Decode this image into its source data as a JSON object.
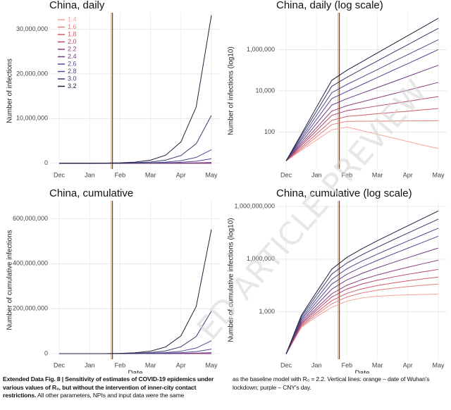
{
  "chart_data": [
    {
      "type": "line",
      "title": "China, daily",
      "y_label": "Number of infections",
      "log_y": false,
      "legend": "top-left",
      "categories": [
        "Dec",
        null,
        "Jan",
        null,
        "Feb",
        null,
        "Mar",
        null,
        "Apr",
        null,
        "May"
      ],
      "ylim": [
        -1300000,
        33700000
      ],
      "yticks": [
        0,
        {
          "value": 10000000,
          "label": "10,000,000"
        },
        {
          "value": 20000000,
          "label": "20,000,000"
        },
        {
          "value": 30000000,
          "label": "30,000,000"
        }
      ],
      "vlines": [
        {
          "at": 3.42,
          "color": "#f0a04b"
        },
        {
          "at": 3.5,
          "color": "#6a3d9a"
        }
      ],
      "series": [
        {
          "name": "1.4",
          "color": "#f2a49b",
          "values": [
            4,
            13,
            41,
            129,
            174,
            117,
            78,
            52,
            35,
            23,
            16
          ]
        },
        {
          "name": "1.6",
          "color": "#e57f7f",
          "values": [
            4,
            15,
            59,
            229,
            331,
            335,
            339,
            343,
            347,
            351,
            355
          ]
        },
        {
          "name": "1.8",
          "color": "#cf5a6a",
          "values": [
            4,
            18,
            81,
            372,
            575,
            661,
            776,
            891,
            1023,
            1202,
            1380
          ]
        },
        {
          "name": "2.0",
          "color": "#b3466f",
          "values": [
            4,
            22,
            117,
            646,
            1096,
            1413,
            1862,
            2399,
            3090,
            4074,
            5248
          ]
        },
        {
          "name": "2.2",
          "color": "#8f3f7a",
          "values": [
            4,
            26,
            162,
            1047,
            1905,
            2951,
            4571,
            7079,
            10715,
            16596,
            25704
          ]
        },
        {
          "name": "2.4",
          "color": "#6d3b82",
          "values": [
            4,
            32,
            257,
            2042,
            4169,
            7762,
            14454,
            26915,
            50119,
            93325,
            173780
          ]
        },
        {
          "name": "2.6",
          "color": "#5a4592",
          "values": [
            4,
            41,
            407,
            4169,
            9333,
            20417,
            44668,
            97724,
            208930,
            457088,
            1000000
          ]
        },
        {
          "name": "2.8",
          "color": "#4a4a8c",
          "values": [
            4,
            50,
            646,
            8128,
            20417,
            46774,
            107152,
            251189,
            575440,
            1318257,
            3019952
          ]
        },
        {
          "name": "3.0",
          "color": "#38386e",
          "values": [
            4,
            65,
            1023,
            16596,
            45709,
            114815,
            281838,
            707946,
            1737801,
            4365158,
            10715193
          ]
        },
        {
          "name": "3.2",
          "color": "#1e1e3c",
          "values": [
            4,
            79,
            1622,
            32359,
            100000,
            263027,
            691831,
            1819701,
            4786301,
            12589254,
            33113112
          ]
        }
      ]
    },
    {
      "type": "line",
      "title": "China, daily (log scale)",
      "y_label": "Number of infections (log10)",
      "log_y": true,
      "categories": [
        "Dec",
        null,
        "Jan",
        null,
        "Feb",
        null,
        "Mar",
        null,
        "Apr",
        null,
        "May"
      ],
      "ylim": [
        1.6,
        62000000
      ],
      "yticks": [
        100,
        {
          "value": 10000,
          "label": "10,000"
        },
        {
          "value": 1000000,
          "label": "1,000,000"
        }
      ],
      "vlines": [
        {
          "at": 3.42,
          "color": "#f0a04b"
        },
        {
          "at": 3.5,
          "color": "#6a3d9a"
        }
      ],
      "series": [
        {
          "color": "#f2a49b",
          "values": [
            4,
            13,
            41,
            129,
            174,
            117,
            78,
            52,
            35,
            23,
            16
          ]
        },
        {
          "color": "#e57f7f",
          "values": [
            4,
            15,
            59,
            229,
            331,
            335,
            339,
            343,
            347,
            351,
            355
          ]
        },
        {
          "color": "#cf5a6a",
          "values": [
            4,
            18,
            81,
            372,
            575,
            661,
            776,
            891,
            1023,
            1202,
            1380
          ]
        },
        {
          "color": "#b3466f",
          "values": [
            4,
            22,
            117,
            646,
            1096,
            1413,
            1862,
            2399,
            3090,
            4074,
            5248
          ]
        },
        {
          "color": "#8f3f7a",
          "values": [
            4,
            26,
            162,
            1047,
            1905,
            2951,
            4571,
            7079,
            10715,
            16596,
            25704
          ]
        },
        {
          "color": "#6d3b82",
          "values": [
            4,
            32,
            257,
            2042,
            4169,
            7762,
            14454,
            26915,
            50119,
            93325,
            173780
          ]
        },
        {
          "color": "#5a4592",
          "values": [
            4,
            41,
            407,
            4169,
            9333,
            20417,
            44668,
            97724,
            208930,
            457088,
            1000000
          ]
        },
        {
          "color": "#4a4a8c",
          "values": [
            4,
            50,
            646,
            8128,
            20417,
            46774,
            107152,
            251189,
            575440,
            1318257,
            3019952
          ]
        },
        {
          "color": "#38386e",
          "values": [
            4,
            65,
            1023,
            16596,
            45709,
            114815,
            281838,
            707946,
            1737801,
            4365158,
            10715193
          ]
        },
        {
          "color": "#1e1e3c",
          "values": [
            4,
            79,
            1622,
            32359,
            100000,
            263027,
            691831,
            1819701,
            4786301,
            12589254,
            33113112
          ]
        }
      ]
    },
    {
      "type": "line",
      "title": "China, cumulative",
      "y_label": "Number of cumulative infections",
      "x_label": "Date",
      "log_y": false,
      "categories": [
        "Dec",
        null,
        "Jan",
        null,
        "Feb",
        null,
        "Mar",
        null,
        "Apr",
        null,
        "May"
      ],
      "ylim": [
        -25000000,
        680000000
      ],
      "yticks": [
        0,
        {
          "value": 200000000,
          "label": "200,000,000"
        },
        {
          "value": 400000000,
          "label": "400,000,000"
        },
        {
          "value": 600000000,
          "label": "600,000,000"
        }
      ],
      "vlines": [
        {
          "at": 3.42,
          "color": "#f0a04b"
        },
        {
          "at": 3.5,
          "color": "#6a3d9a"
        }
      ],
      "series": [
        {
          "color": "#f2a49b",
          "values": [
            4,
            132,
            537,
            1812,
            4084,
            6266,
            7729,
            8704,
            9357,
            9792,
            10085
          ]
        },
        {
          "color": "#e57f7f",
          "values": [
            4,
            147,
            702,
            2862,
            7062,
            12057,
            17112,
            22227,
            27402,
            32637,
            37932
          ]
        },
        {
          "color": "#cf5a6a",
          "values": [
            4,
            169,
            912,
            4310,
            11413,
            20683,
            31461,
            43964,
            58319,
            75007,
            94372
          ]
        },
        {
          "color": "#b3466f",
          "values": [
            4,
            199,
            1242,
            6965,
            20030,
            38848,
            63411,
            95369,
            136537,
            190267,
            260182
          ]
        },
        {
          "color": "#8f3f7a",
          "values": [
            4,
            229,
            1639,
            10707,
            32847,
            69267,
            125682,
            213057,
            346512,
            551345,
            868595
          ]
        },
        {
          "color": "#6d3b82",
          "values": [
            4,
            274,
            2442,
            19685,
            66268,
            155751,
            322371,
            632639,
            1210394,
            2286224,
            4289512
          ]
        },
        {
          "color": "#5a4592",
          "values": [
            4,
            342,
            3702,
            38022,
            139287,
            362412,
            850550,
            1918490,
            4218395,
            9213530,
            20141690
          ]
        },
        {
          "color": "#4a4a8c",
          "values": [
            4,
            409,
            5629,
            71434,
            285522,
            789455,
            1943900,
            4631458,
            10831176,
            25033904,
            57570472
          ]
        },
        {
          "color": "#38386e",
          "values": [
            4,
            522,
            8682,
            140825,
            608113,
            1812043,
            4786941,
            12210321,
            30552224,
            76324417,
            189427050
          ]
        },
        {
          "color": "#1e1e3c",
          "values": [
            4,
            627,
            13385,
            268243,
            1260936,
            3983639,
            11145074,
            29980814,
            79525829,
            209661000,
            552428745
          ]
        }
      ]
    },
    {
      "type": "line",
      "title": "China, cumulative (log scale)",
      "y_label": "Number of cumulative infections (log10)",
      "x_label": "Date",
      "log_y": true,
      "categories": [
        "Dec",
        null,
        "Jan",
        null,
        "Feb",
        null,
        "Mar",
        null,
        "Apr",
        null,
        "May"
      ],
      "ylim": [
        2,
        2100000000
      ],
      "yticks": [
        {
          "value": 1000,
          "label": "1,000"
        },
        {
          "value": 1000000,
          "label": "1,000,000"
        },
        {
          "value": 1000000000,
          "label": "1,000,000,000"
        }
      ],
      "vlines": [
        {
          "at": 3.42,
          "color": "#f0a04b"
        },
        {
          "at": 3.5,
          "color": "#6a3d9a"
        }
      ],
      "series": [
        {
          "color": "#f2a49b",
          "values": [
            4,
            132,
            537,
            1812,
            4084,
            6266,
            7729,
            8704,
            9357,
            9792,
            10085
          ]
        },
        {
          "color": "#e57f7f",
          "values": [
            4,
            147,
            702,
            2862,
            7062,
            12057,
            17112,
            22227,
            27402,
            32637,
            37932
          ]
        },
        {
          "color": "#cf5a6a",
          "values": [
            4,
            169,
            912,
            4310,
            11413,
            20683,
            31461,
            43964,
            58319,
            75007,
            94372
          ]
        },
        {
          "color": "#b3466f",
          "values": [
            4,
            199,
            1242,
            6965,
            20030,
            38848,
            63411,
            95369,
            136537,
            190267,
            260182
          ]
        },
        {
          "color": "#8f3f7a",
          "values": [
            4,
            229,
            1639,
            10707,
            32847,
            69267,
            125682,
            213057,
            346512,
            551345,
            868595
          ]
        },
        {
          "color": "#6d3b82",
          "values": [
            4,
            274,
            2442,
            19685,
            66268,
            155751,
            322371,
            632639,
            1210394,
            2286224,
            4289512
          ]
        },
        {
          "color": "#5a4592",
          "values": [
            4,
            342,
            3702,
            38022,
            139287,
            362412,
            850550,
            1918490,
            4218395,
            9213530,
            20141690
          ]
        },
        {
          "color": "#4a4a8c",
          "values": [
            4,
            409,
            5629,
            71434,
            285522,
            789455,
            1943900,
            4631458,
            10831176,
            25033904,
            57570472
          ]
        },
        {
          "color": "#38386e",
          "values": [
            4,
            522,
            8682,
            140825,
            608113,
            1812043,
            4786941,
            12210321,
            30552224,
            76324417,
            189427050
          ]
        },
        {
          "color": "#1e1e3c",
          "values": [
            4,
            627,
            13385,
            268243,
            1260936,
            3983639,
            11145074,
            29980814,
            79525829,
            209661000,
            552428745
          ]
        }
      ]
    }
  ],
  "caption": {
    "bold": "Extended Data Fig. 8 | Sensitivity of estimates of COVID-19 epidemics under various values of R₀, but without the intervention of inner-city contact restrictions.",
    "text": "All other parameters, NPIs and input data were the same",
    "continued": "as the baseline model with R₀ = 2.2. Vertical lines: orange – date of Wuhan's lockdown; purple – CNY's day."
  },
  "watermark": "ED ARTICLE PREVIEW"
}
